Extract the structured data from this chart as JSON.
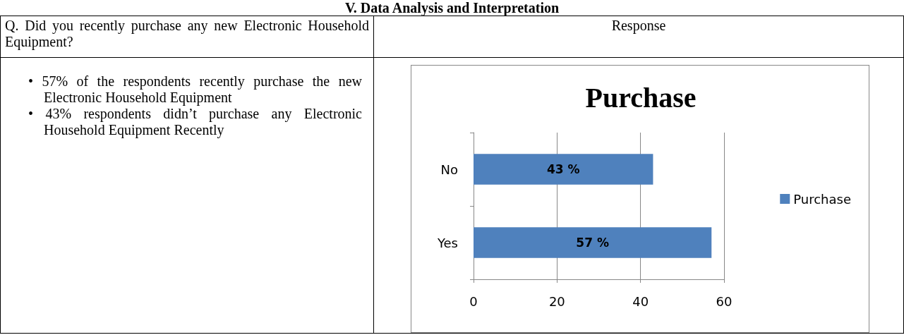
{
  "chart_data": {
    "type": "bar",
    "orientation": "horizontal",
    "title": "Purchase",
    "categories": [
      "No",
      "Yes"
    ],
    "series": [
      {
        "name": "Purchase",
        "color": "#4f81bd",
        "values": [
          43,
          57
        ],
        "value_labels": [
          "43 %",
          "57 %"
        ]
      }
    ],
    "xlim": [
      0,
      60
    ],
    "xticks": [
      0,
      20,
      40,
      60
    ],
    "grid": "x",
    "legend": "right",
    "annotations": [
      "V. Data Analysis and Interpretation",
      "Q. Did you recently purchase any new Electronic Household Equipment?",
      "Response",
      "• 57% of the respondents recently purchase the new Electronic Household Equipment",
      "• 43% respondents didn’t purchase any Electronic Household Equipment Recently"
    ]
  }
}
